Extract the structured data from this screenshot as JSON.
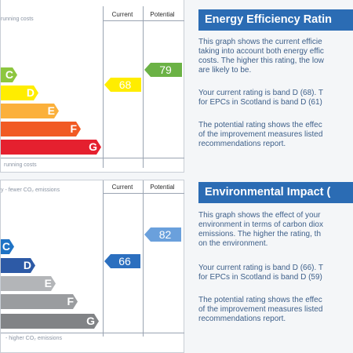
{
  "energy_efficiency": {
    "top_caption": "running costs",
    "bottom_caption": "running costs",
    "col_current": "Current",
    "col_potential": "Potential",
    "bands": [
      "C",
      "D",
      "E",
      "F",
      "G"
    ],
    "current_value": "68",
    "potential_value": "79",
    "colors": {
      "C": "#8dc63f",
      "D": "#ffed00",
      "E": "#fbb03b",
      "F": "#f15a24",
      "G": "#e5202f",
      "current": "#ffed00",
      "potential": "#6bb245"
    }
  },
  "environmental_impact": {
    "top_caption": "y - fewer CO₂ emissions",
    "bottom_caption": "- higher CO₂ emissions",
    "col_current": "Current",
    "col_potential": "Potential",
    "bands": [
      "C",
      "D",
      "E",
      "F",
      "G"
    ],
    "current_value": "66",
    "potential_value": "82",
    "colors": {
      "C": "#1f73c5",
      "D": "#2d5aa6",
      "E": "#b3b5b8",
      "F": "#9a9c9f",
      "G": "#818386",
      "current": "#2b6fbf",
      "potential": "#6aa0dc"
    }
  },
  "text": {
    "ee_heading": "Energy Efficiency Ratin",
    "ee_para1": "This graph shows the current efficie\ntaking into account both energy effic\ncosts. The higher this rating, the low\nare likely to be.",
    "ee_para2": "Your current rating is band D (68). T\nfor EPCs in Scotland is band D (61)",
    "ee_para3": "The potential rating shows the effec\nof the improvement measures listed\nrecommendations report.",
    "ei_heading": "Environmental Impact (",
    "ei_para1": "This graph shows the effect of your\nenvironment in terms of carbon diox\nemissions. The higher the rating, th\non the environment.",
    "ei_para2": "Your current rating is band D (66). T\nfor EPCs in Scotland is band D (59)",
    "ei_para3": "The potential rating shows the effec\nof the improvement measures listed\nrecommendations report.",
    "heading_color": "#2b6cb4"
  }
}
